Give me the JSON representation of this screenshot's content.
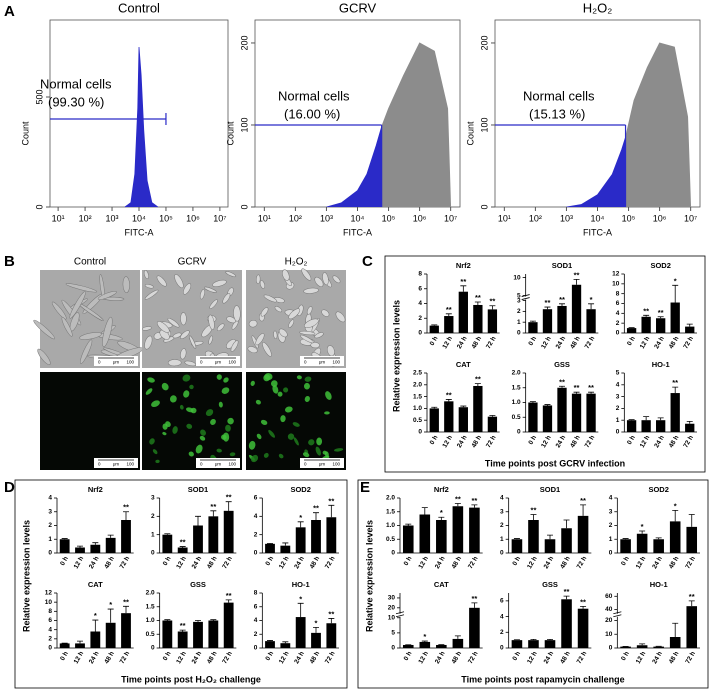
{
  "figure": {
    "panel_labels": [
      "A",
      "B",
      "C",
      "D",
      "E"
    ],
    "microscopy": {
      "columns": [
        "Control",
        "GCRV",
        "H₂O₂"
      ],
      "scale_bar": [
        "0",
        "μm",
        "100"
      ]
    },
    "groups": [
      {
        "ylabel": "Relative expression levels",
        "xlabel": "Time points post GCRV infection"
      },
      {
        "ylabel": "Relative expression levels",
        "xlabel": "Time points post H₂O₂ challenge"
      },
      {
        "ylabel": "Relative expression levels",
        "xlabel": "Time points post rapamycin challenge"
      }
    ]
  },
  "chart_data": [
    {
      "type": "area",
      "title": "Control",
      "xlabel": "FITC-A",
      "ylabel": "Count",
      "annotations": [
        "Normal cells",
        "(99.30 %)"
      ],
      "log_x": true,
      "x": [
        3000,
        5000,
        7000,
        9000,
        10000,
        12000,
        15000,
        20000,
        30000,
        50000
      ],
      "series": [
        {
          "color": "#2a2ac8",
          "values": [
            0,
            20,
            150,
            450,
            727,
            600,
            350,
            120,
            20,
            0
          ]
        }
      ],
      "gate": {
        "y": 400,
        "x": [
          5,
          100000
        ]
      },
      "gate_drop": false,
      "xlim": [
        5,
        20000000
      ],
      "ylim": [
        0,
        850
      ],
      "xticks": [
        {
          "value": 10,
          "label": "10¹"
        },
        {
          "value": 100,
          "label": "10²"
        },
        {
          "value": 1000,
          "label": "10³"
        },
        {
          "value": 10000,
          "label": "10⁴"
        },
        {
          "value": 100000,
          "label": "10⁵"
        },
        {
          "value": 1000000,
          "label": "10⁶"
        },
        {
          "value": 10000000,
          "label": "10⁷"
        }
      ],
      "yticks": [
        0,
        500
      ]
    },
    {
      "type": "area",
      "title": "GCRV",
      "xlabel": "FITC-A",
      "ylabel": "Count",
      "annotations": [
        "Normal cells",
        "(16.00 %)"
      ],
      "log_x": true,
      "x": [
        1000,
        3000,
        10000,
        20000,
        40000,
        60000,
        100000,
        300000,
        1000000,
        3000000,
        8000000,
        10000000
      ],
      "series": [
        {
          "color": "#2a2ac8",
          "values": [
            0,
            5,
            20,
            40,
            75,
            98,
            null,
            null,
            null,
            null,
            null,
            null
          ]
        },
        {
          "color": "#8c8c8c",
          "values": [
            null,
            null,
            null,
            null,
            null,
            98,
            120,
            160,
            200,
            190,
            120,
            0
          ]
        }
      ],
      "gate": {
        "y": 100,
        "x": [
          5,
          60000
        ]
      },
      "gate_drop": true,
      "xlim": [
        5,
        20000000
      ],
      "ylim": [
        0,
        228
      ],
      "xticks": [
        {
          "value": 10,
          "label": "10¹"
        },
        {
          "value": 100,
          "label": "10²"
        },
        {
          "value": 1000,
          "label": "10³"
        },
        {
          "value": 10000,
          "label": "10⁴"
        },
        {
          "value": 100000,
          "label": "10⁵"
        },
        {
          "value": 1000000,
          "label": "10⁶"
        },
        {
          "value": 10000000,
          "label": "10⁷"
        }
      ],
      "yticks": [
        0,
        100,
        200
      ]
    },
    {
      "type": "area",
      "title": "H₂O₂",
      "xlabel": "FITC-A",
      "ylabel": "Count",
      "annotations": [
        "Normal cells",
        "(15.13 %)"
      ],
      "log_x": true,
      "x": [
        1000,
        3000,
        10000,
        30000,
        60000,
        80000,
        150000,
        400000,
        1000000,
        3000000,
        8000000,
        10000000
      ],
      "series": [
        {
          "color": "#2a2ac8",
          "values": [
            0,
            3,
            15,
            40,
            70,
            85,
            null,
            null,
            null,
            null,
            null,
            null
          ]
        },
        {
          "color": "#8c8c8c",
          "values": [
            null,
            null,
            null,
            null,
            null,
            85,
            130,
            170,
            200,
            195,
            110,
            0
          ]
        }
      ],
      "gate": {
        "y": 100,
        "x": [
          5,
          80000
        ]
      },
      "gate_drop": true,
      "xlim": [
        5,
        20000000
      ],
      "ylim": [
        0,
        228
      ],
      "xticks": [
        {
          "value": 10,
          "label": "10¹"
        },
        {
          "value": 100,
          "label": "10²"
        },
        {
          "value": 1000,
          "label": "10³"
        },
        {
          "value": 10000,
          "label": "10⁴"
        },
        {
          "value": 100000,
          "label": "10⁵"
        },
        {
          "value": 1000000,
          "label": "10⁶"
        },
        {
          "value": 10000000,
          "label": "10⁷"
        }
      ],
      "yticks": [
        0,
        100,
        200
      ]
    },
    {
      "type": "bar",
      "title": "Nrf2",
      "color": "#000000",
      "categories": [
        "0 h",
        "12 h",
        "24 h",
        "48 h",
        "72 h"
      ],
      "values": [
        1,
        2.3,
        5.6,
        3.8,
        3.2
      ],
      "errors": [
        0.1,
        0.3,
        0.8,
        0.4,
        0.5
      ],
      "significance": [
        null,
        "**",
        "**",
        "**",
        "**"
      ],
      "ylim": [
        0,
        8
      ],
      "yticks": [
        0,
        2,
        4,
        6,
        8
      ]
    },
    {
      "type": "bar",
      "title": "SOD1",
      "color": "#000000",
      "categories": [
        "0 h",
        "12 h",
        "24 h",
        "48 h",
        "72 h"
      ],
      "values": [
        1,
        2.2,
        2.5,
        8,
        2.2
      ],
      "errors": [
        0.1,
        0.2,
        0.2,
        1.5,
        0.5
      ],
      "significance": [
        null,
        "**",
        "**",
        "**",
        "*"
      ],
      "ylim": [
        0,
        11
      ],
      "ybreak": [
        3,
        5
      ],
      "yticks": [
        0,
        1,
        2,
        3,
        5,
        10
      ]
    },
    {
      "type": "bar",
      "title": "SOD2",
      "color": "#000000",
      "categories": [
        "0 h",
        "12 h",
        "24 h",
        "48 h",
        "72 h"
      ],
      "values": [
        1,
        3.3,
        3,
        6.2,
        1.3
      ],
      "errors": [
        0.1,
        0.3,
        0.3,
        3.5,
        0.5
      ],
      "significance": [
        null,
        "**",
        "**",
        "*",
        null
      ],
      "ylim": [
        0,
        12
      ],
      "yticks": [
        0,
        2,
        4,
        6,
        8,
        10,
        12
      ]
    },
    {
      "type": "bar",
      "title": "CAT",
      "color": "#000000",
      "categories": [
        "0 h",
        "12 h",
        "24 h",
        "48 h",
        "72 h"
      ],
      "values": [
        1,
        1.3,
        1.05,
        1.95,
        0.65
      ],
      "errors": [
        0.05,
        0.08,
        0.05,
        0.1,
        0.05
      ],
      "significance": [
        null,
        "**",
        null,
        "**",
        null
      ],
      "ylim": [
        0,
        2.5
      ],
      "yticks": [
        0,
        0.5,
        {
          "value": 1,
          "label": "1.0"
        },
        1.5,
        {
          "value": 2,
          "label": "2.0"
        },
        2.5
      ]
    },
    {
      "type": "bar",
      "title": "GSS",
      "color": "#000000",
      "categories": [
        "0 h",
        "12 h",
        "24 h",
        "48 h",
        "72 h"
      ],
      "values": [
        1,
        0.9,
        1.5,
        1.3,
        1.3
      ],
      "errors": [
        0.03,
        0.03,
        0.05,
        0.05,
        0.05
      ],
      "significance": [
        null,
        null,
        "**",
        "**",
        "**"
      ],
      "ylim": [
        0,
        2
      ],
      "yticks": [
        0,
        0.5,
        {
          "value": 1,
          "label": "1.0"
        },
        1.5,
        {
          "value": 2,
          "label": "2.0"
        }
      ]
    },
    {
      "type": "bar",
      "title": "HO-1",
      "color": "#000000",
      "categories": [
        "0 h",
        "12 h",
        "24 h",
        "48 h",
        "72 h"
      ],
      "values": [
        1,
        1,
        1,
        3.3,
        0.7
      ],
      "errors": [
        0.05,
        0.3,
        0.2,
        0.5,
        0.2
      ],
      "significance": [
        null,
        null,
        null,
        "**",
        null
      ],
      "ylim": [
        0,
        5
      ],
      "yticks": [
        0,
        1,
        2,
        3,
        4,
        5
      ]
    },
    {
      "type": "bar",
      "title": "Nrf2",
      "color": "#000000",
      "categories": [
        "0 h",
        "12 h",
        "24 h",
        "48 h",
        "72 h"
      ],
      "values": [
        1,
        0.4,
        0.6,
        1.1,
        2.4
      ],
      "errors": [
        0.05,
        0.1,
        0.15,
        0.2,
        0.6
      ],
      "significance": [
        null,
        null,
        null,
        null,
        "**"
      ],
      "ylim": [
        0,
        4
      ],
      "yticks": [
        0,
        1,
        2,
        3,
        4
      ]
    },
    {
      "type": "bar",
      "title": "SOD1",
      "color": "#000000",
      "categories": [
        "0 h",
        "12 h",
        "24 h",
        "48 h",
        "72 h"
      ],
      "values": [
        1,
        0.3,
        1.5,
        2,
        2.3
      ],
      "errors": [
        0.05,
        0.05,
        0.5,
        0.3,
        0.5
      ],
      "significance": [
        null,
        "**",
        null,
        "**",
        "**"
      ],
      "ylim": [
        0,
        3
      ],
      "yticks": [
        0,
        1,
        2,
        3
      ]
    },
    {
      "type": "bar",
      "title": "SOD2",
      "color": "#000000",
      "categories": [
        "0 h",
        "12 h",
        "24 h",
        "48 h",
        "72 h"
      ],
      "values": [
        1,
        0.8,
        2.8,
        3.6,
        3.9
      ],
      "errors": [
        0.05,
        0.3,
        0.6,
        0.8,
        1.3
      ],
      "significance": [
        null,
        null,
        "*",
        "**",
        "**"
      ],
      "ylim": [
        0,
        6
      ],
      "yticks": [
        0,
        2,
        4,
        6
      ]
    },
    {
      "type": "bar",
      "title": "CAT",
      "color": "#000000",
      "categories": [
        "0 h",
        "12 h",
        "24 h",
        "48 h",
        "72 h"
      ],
      "values": [
        1,
        1,
        3.6,
        5.5,
        7.6
      ],
      "errors": [
        0.05,
        0.5,
        2.5,
        3,
        1.5
      ],
      "significance": [
        null,
        null,
        "*",
        "*",
        "**"
      ],
      "ylim": [
        0,
        12
      ],
      "yticks": [
        0,
        2,
        4,
        6,
        8,
        10,
        12
      ]
    },
    {
      "type": "bar",
      "title": "GSS",
      "color": "#000000",
      "categories": [
        "0 h",
        "12 h",
        "24 h",
        "48 h",
        "72 h"
      ],
      "values": [
        1,
        0.6,
        0.95,
        1,
        1.65
      ],
      "errors": [
        0.03,
        0.05,
        0.05,
        0.03,
        0.1
      ],
      "significance": [
        null,
        "**",
        null,
        null,
        "**"
      ],
      "ylim": [
        0,
        2
      ],
      "yticks": [
        0,
        0.5,
        {
          "value": 1,
          "label": "1.0"
        },
        1.5,
        {
          "value": 2,
          "label": "2.0"
        }
      ]
    },
    {
      "type": "bar",
      "title": "HO-1",
      "color": "#000000",
      "categories": [
        "0 h",
        "12 h",
        "24 h",
        "48 h",
        "72 h"
      ],
      "values": [
        1,
        0.7,
        4.5,
        2.2,
        3.6
      ],
      "errors": [
        0.1,
        0.2,
        2,
        0.8,
        0.7
      ],
      "significance": [
        null,
        null,
        "*",
        "*",
        "**"
      ],
      "ylim": [
        0,
        8
      ],
      "yticks": [
        0,
        2,
        4,
        6,
        8
      ]
    },
    {
      "type": "bar",
      "title": "Nrf2",
      "color": "#000000",
      "categories": [
        "0 h",
        "12 h",
        "24 h",
        "48 h",
        "72 h"
      ],
      "values": [
        1,
        1.4,
        1.2,
        1.7,
        1.65
      ],
      "errors": [
        0.05,
        0.25,
        0.1,
        0.1,
        0.1
      ],
      "significance": [
        null,
        null,
        "*",
        "**",
        "**"
      ],
      "ylim": [
        0,
        2
      ],
      "yticks": [
        0,
        0.5,
        {
          "value": 1,
          "label": "1.0"
        },
        1.5,
        {
          "value": 2,
          "label": "2.0"
        }
      ]
    },
    {
      "type": "bar",
      "title": "SOD1",
      "color": "#000000",
      "categories": [
        "0 h",
        "12 h",
        "24 h",
        "48 h",
        "72 h"
      ],
      "values": [
        1,
        2.4,
        1,
        1.8,
        2.7
      ],
      "errors": [
        0.05,
        0.4,
        0.3,
        0.6,
        0.8
      ],
      "significance": [
        null,
        "**",
        null,
        null,
        "**"
      ],
      "ylim": [
        0,
        4
      ],
      "yticks": [
        0,
        1,
        2,
        3,
        4
      ]
    },
    {
      "type": "bar",
      "title": "SOD2",
      "color": "#000000",
      "categories": [
        "0 h",
        "12 h",
        "24 h",
        "48 h",
        "72 h"
      ],
      "values": [
        1,
        1.4,
        1,
        2.3,
        1.9
      ],
      "errors": [
        0.05,
        0.2,
        0.1,
        0.8,
        0.9
      ],
      "significance": [
        null,
        "*",
        null,
        "*",
        null
      ],
      "ylim": [
        0,
        4
      ],
      "yticks": [
        0,
        1,
        2,
        3,
        4
      ]
    },
    {
      "type": "bar",
      "title": "CAT",
      "color": "#000000",
      "categories": [
        "0 h",
        "12 h",
        "24 h",
        "48 h",
        "72 h"
      ],
      "values": [
        1,
        2,
        1,
        3,
        20
      ],
      "errors": [
        0.05,
        0.3,
        0.1,
        1,
        5
      ],
      "significance": [
        null,
        "*",
        null,
        null,
        "**"
      ],
      "ylim": [
        0,
        35
      ],
      "ybreak": [
        10,
        15
      ],
      "yticks": [
        0,
        5,
        10,
        20,
        30
      ]
    },
    {
      "type": "bar",
      "title": "GSS",
      "color": "#000000",
      "categories": [
        "0 h",
        "12 h",
        "24 h",
        "48 h",
        "72 h"
      ],
      "values": [
        1,
        1,
        1,
        6.2,
        5
      ],
      "errors": [
        0.05,
        0.1,
        0.1,
        0.4,
        0.3
      ],
      "significance": [
        null,
        null,
        null,
        "**",
        "**"
      ],
      "ylim": [
        0,
        7
      ],
      "yticks": [
        0,
        2,
        4,
        6
      ]
    },
    {
      "type": "bar",
      "title": "HO-1",
      "color": "#000000",
      "categories": [
        "0 h",
        "12 h",
        "24 h",
        "48 h",
        "72 h"
      ],
      "values": [
        1,
        2,
        1,
        8,
        45
      ],
      "errors": [
        0.2,
        1,
        0.3,
        10,
        8
      ],
      "significance": [
        null,
        null,
        null,
        null,
        "**"
      ],
      "ylim": [
        0,
        65
      ],
      "ybreak": [
        22,
        35
      ],
      "yticks": [
        0,
        10,
        20,
        40,
        60
      ]
    }
  ]
}
